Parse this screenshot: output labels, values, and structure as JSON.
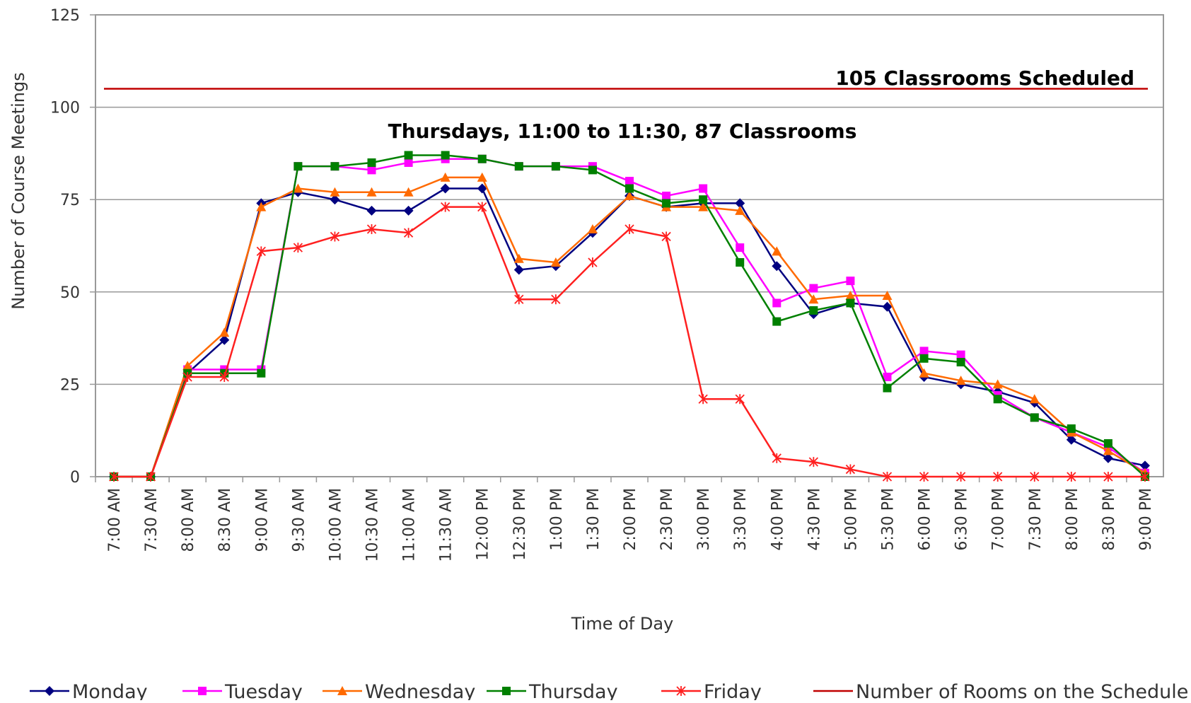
{
  "chart_data": {
    "type": "line",
    "x_label": "Time of Day",
    "y_label": "Number of Course Meetings",
    "annotations": [
      "105 Classrooms Scheduled",
      "Thursdays, 11:00 to 11:30, 87 Classrooms"
    ],
    "categories": [
      "7:00 AM",
      "7:30 AM",
      "8:00 AM",
      "8:30 AM",
      "9:00 AM",
      "9:30 AM",
      "10:00 AM",
      "10:30 AM",
      "11:00 AM",
      "11:30 AM",
      "12:00 PM",
      "12:30 PM",
      "1:00 PM",
      "1:30 PM",
      "2:00 PM",
      "2:30 PM",
      "3:00 PM",
      "3:30 PM",
      "4:00 PM",
      "4:30 PM",
      "5:00 PM",
      "5:30 PM",
      "6:00 PM",
      "6:30 PM",
      "7:00 PM",
      "7:30 PM",
      "8:00 PM",
      "8:30 PM",
      "9:00 PM"
    ],
    "series": [
      {
        "name": "Monday",
        "color": "#000080",
        "marker": "diamond",
        "values": [
          0,
          0,
          28,
          37,
          74,
          77,
          75,
          72,
          72,
          78,
          78,
          56,
          57,
          66,
          76,
          73,
          74,
          74,
          57,
          44,
          47,
          46,
          27,
          25,
          23,
          20,
          10,
          5,
          3
        ]
      },
      {
        "name": "Tuesday",
        "color": "#ff00ff",
        "marker": "square",
        "values": [
          0,
          0,
          29,
          29,
          29,
          84,
          84,
          83,
          85,
          86,
          86,
          84,
          84,
          84,
          80,
          76,
          78,
          62,
          47,
          51,
          53,
          27,
          34,
          33,
          22,
          16,
          12,
          8,
          1
        ]
      },
      {
        "name": "Wednesday",
        "color": "#ff6a00",
        "marker": "triangle",
        "values": [
          0,
          0,
          30,
          39,
          73,
          78,
          77,
          77,
          77,
          81,
          81,
          59,
          58,
          67,
          76,
          73,
          73,
          72,
          61,
          48,
          49,
          49,
          28,
          26,
          25,
          21,
          12,
          7,
          1
        ]
      },
      {
        "name": "Thursday",
        "color": "#008000",
        "marker": "square",
        "values": [
          0,
          0,
          28,
          28,
          28,
          84,
          84,
          85,
          87,
          87,
          86,
          84,
          84,
          83,
          78,
          74,
          75,
          58,
          42,
          45,
          47,
          24,
          32,
          31,
          21,
          16,
          13,
          9,
          0
        ]
      },
      {
        "name": "Friday",
        "color": "#ff2020",
        "marker": "asterisk",
        "values": [
          0,
          0,
          27,
          27,
          61,
          62,
          65,
          67,
          66,
          73,
          73,
          48,
          48,
          58,
          67,
          65,
          21,
          21,
          5,
          4,
          2,
          0,
          0,
          0,
          0,
          0,
          0,
          0,
          0
        ]
      },
      {
        "name": "Number of Rooms on the Schedule",
        "color": "#c00000",
        "marker": "none",
        "values": [
          105,
          105,
          105,
          105,
          105,
          105,
          105,
          105,
          105,
          105,
          105,
          105,
          105,
          105,
          105,
          105,
          105,
          105,
          105,
          105,
          105,
          105,
          105,
          105,
          105,
          105,
          105,
          105,
          105
        ]
      }
    ],
    "ylim": [
      0,
      125
    ],
    "yticks": [
      0,
      25,
      50,
      75,
      100,
      125
    ],
    "grid": true,
    "legend": "bottom"
  }
}
